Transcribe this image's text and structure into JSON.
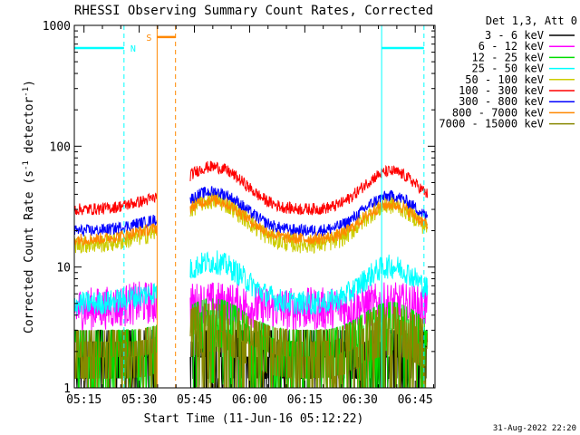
{
  "chart_data": {
    "type": "line",
    "title": "RHESSI Observing Summary Count Rates, Corrected",
    "xlabel": "Start Time (11-Jun-16 05:12:22)",
    "ylabel_main": "Corrected Count Rate (s",
    "ylabel_sup": "-1",
    "ylabel_mid": " detector",
    "ylabel_sup2": "-1",
    "ylabel_end": ")",
    "x_scale": "time (minutes after 05:12:22)",
    "xlim": [
      0,
      98
    ],
    "x_ticks": [
      {
        "t": 2.63,
        "label": "05:15"
      },
      {
        "t": 17.63,
        "label": "05:30"
      },
      {
        "t": 32.63,
        "label": "05:45"
      },
      {
        "t": 47.63,
        "label": "06:00"
      },
      {
        "t": 62.63,
        "label": "06:15"
      },
      {
        "t": 77.63,
        "label": "06:30"
      },
      {
        "t": 92.63,
        "label": "06:45"
      }
    ],
    "y_scale": "log",
    "ylim": [
      1,
      1000
    ],
    "y_ticks": [
      {
        "v": 1,
        "label": "1"
      },
      {
        "v": 10,
        "label": "10"
      },
      {
        "v": 100,
        "label": "100"
      },
      {
        "v": 1000,
        "label": "1000"
      }
    ],
    "legend_header": "Det 1,3, Att 0",
    "legend_position": "outside-right-top",
    "series": [
      {
        "name": "3 - 6 keV",
        "color": "#000000",
        "base": 2.2,
        "noise": 0.35,
        "amp": 0.0
      },
      {
        "name": "6 - 12 keV",
        "color": "#ff00ff",
        "base": 4.5,
        "noise": 0.18,
        "amp": 0.12
      },
      {
        "name": "12 - 25 keV",
        "color": "#00dd00",
        "base": 3.2,
        "noise": 0.32,
        "amp": 0.25
      },
      {
        "name": "25 - 50 keV",
        "color": "#00ffff",
        "base": 5.0,
        "noise": 0.1,
        "amp": 1.2
      },
      {
        "name": "50 - 100 keV",
        "color": "#cccc00",
        "base": 15.5,
        "noise": 0.08,
        "amp": 1.3
      },
      {
        "name": "100 - 300 keV",
        "color": "#ff0000",
        "base": 30,
        "noise": 0.05,
        "amp": 1.25
      },
      {
        "name": "300 - 800 keV",
        "color": "#0000ff",
        "base": 20,
        "noise": 0.05,
        "amp": 1.1
      },
      {
        "name": "800 - 7000 keV",
        "color": "#ff8800",
        "base": 17,
        "noise": 0.05,
        "amp": 1.1
      },
      {
        "name": "7000 - 15000 keV",
        "color": "#888800",
        "base": 2.5,
        "noise": 0.4,
        "amp": 0.2
      }
    ],
    "data_segments": [
      {
        "start": 0.0,
        "end": 22.5
      },
      {
        "start": 31.5,
        "end": 96.0
      }
    ],
    "peak_times": [
      37.5,
      86.0
    ],
    "orbit_flags": {
      "N": {
        "label": "N",
        "color": "#00ffff",
        "level": 650,
        "spans": [
          [
            0,
            13.5
          ],
          [
            83.5,
            95.0
          ]
        ],
        "dashed_at": [
          13.5,
          95.0
        ],
        "solid_at": [
          83.5
        ]
      },
      "S": {
        "label": "S",
        "color": "#ff8800",
        "level": 800,
        "spans": [
          [
            22.5,
            27.5
          ]
        ],
        "dashed_at": [
          27.5
        ],
        "solid_at": [
          22.5
        ]
      }
    },
    "grid": false
  },
  "footer": {
    "timestamp": "31-Aug-2022 22:20"
  }
}
